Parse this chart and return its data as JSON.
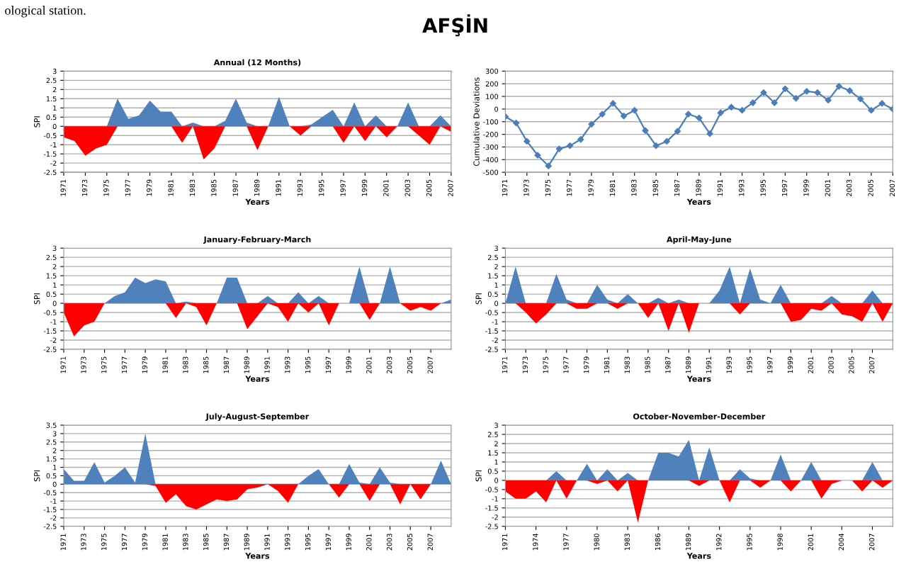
{
  "chart_data": [
    {
      "type": "area",
      "title": "Annual (12 Months)",
      "xlabel": "Years",
      "ylabel": "SPI",
      "annotations": [
        "ological station.",
        "AFŞİN"
      ],
      "x": [
        1971,
        1972,
        1973,
        1974,
        1975,
        1976,
        1977,
        1978,
        1979,
        1980,
        1981,
        1982,
        1983,
        1984,
        1985,
        1986,
        1987,
        1988,
        1989,
        1990,
        1991,
        1992,
        1993,
        1994,
        1995,
        1996,
        1997,
        1998,
        1999,
        2000,
        2001,
        2002,
        2003,
        2004,
        2005,
        2006,
        2007
      ],
      "series": [
        {
          "color": "#4f81bd",
          "values": [
            0,
            0,
            0,
            0,
            0,
            1.5,
            0.4,
            0.6,
            1.4,
            0.8,
            0.8,
            0,
            0.2,
            0,
            0,
            0.3,
            1.5,
            0.2,
            0,
            0,
            1.6,
            0,
            0,
            0.1,
            0.5,
            0.9,
            0,
            1.3,
            0,
            0.6,
            0,
            0,
            1.3,
            0,
            0,
            0.6,
            0
          ]
        },
        {
          "color": "#ff0000",
          "values": [
            -0.6,
            -0.8,
            -1.6,
            -1.2,
            -1.0,
            0,
            0,
            0,
            0,
            0,
            0,
            -0.9,
            0,
            -1.8,
            -1.2,
            0,
            0,
            0,
            -1.3,
            0,
            0,
            0,
            -0.5,
            0,
            0,
            0,
            -0.9,
            0,
            -0.8,
            0,
            -0.6,
            0,
            0,
            -0.5,
            -1.0,
            0,
            -0.3
          ]
        }
      ],
      "xlim": [
        1971,
        2007
      ],
      "xticks": [
        1971,
        1973,
        1975,
        1977,
        1979,
        1981,
        1983,
        1985,
        1987,
        1989,
        1991,
        1993,
        1995,
        1997,
        1999,
        2001,
        2003,
        2005,
        2007
      ],
      "ylim": [
        -2.5,
        3
      ],
      "yticks": [
        -2.5,
        -2,
        -1.5,
        -1,
        -0.5,
        0,
        0.5,
        1,
        1.5,
        2,
        2.5,
        3
      ],
      "grid": "y"
    },
    {
      "type": "line",
      "xlabel": "Years",
      "ylabel": "Cumulative Deviations",
      "marker": "diamond",
      "x": [
        1971,
        1972,
        1973,
        1974,
        1975,
        1976,
        1977,
        1978,
        1979,
        1980,
        1981,
        1982,
        1983,
        1984,
        1985,
        1986,
        1987,
        1988,
        1989,
        1990,
        1991,
        1992,
        1993,
        1994,
        1995,
        1996,
        1997,
        1998,
        1999,
        2000,
        2001,
        2002,
        2003,
        2004,
        2005,
        2006,
        2007
      ],
      "series": [
        {
          "color": "#4a7ebb",
          "values": [
            -60,
            -110,
            -255,
            -365,
            -450,
            -315,
            -290,
            -240,
            -120,
            -40,
            45,
            -55,
            -10,
            -170,
            -290,
            -255,
            -175,
            -40,
            -70,
            -195,
            -30,
            15,
            -10,
            50,
            130,
            50,
            160,
            85,
            140,
            130,
            70,
            180,
            145,
            80,
            -10,
            45,
            0
          ]
        }
      ],
      "xlim": [
        1971,
        2007
      ],
      "xticks": [
        1971,
        1973,
        1975,
        1977,
        1979,
        1981,
        1983,
        1985,
        1987,
        1989,
        1991,
        1993,
        1995,
        1997,
        1999,
        2001,
        2003,
        2005,
        2007
      ],
      "ylim": [
        -500,
        300
      ],
      "yticks": [
        -500,
        -400,
        -300,
        -200,
        -100,
        0,
        100,
        200,
        300
      ],
      "grid": "y"
    },
    {
      "type": "area",
      "title": "January-February-March",
      "xlabel": "Years",
      "ylabel": "SPI",
      "x": [
        1971,
        1972,
        1973,
        1974,
        1975,
        1976,
        1977,
        1978,
        1979,
        1980,
        1981,
        1982,
        1983,
        1984,
        1985,
        1986,
        1987,
        1988,
        1989,
        1990,
        1991,
        1992,
        1993,
        1994,
        1995,
        1996,
        1997,
        1998,
        1999,
        2000,
        2001,
        2002,
        2003,
        2004,
        2005,
        2006,
        2007,
        2008,
        2009
      ],
      "series": [
        {
          "color": "#4f81bd",
          "values": [
            0,
            0,
            0,
            0,
            0,
            0.4,
            0.6,
            1.4,
            1.1,
            1.3,
            1.2,
            0,
            0.1,
            0,
            0,
            0,
            1.4,
            1.4,
            0,
            0,
            0.4,
            0,
            0,
            0.6,
            0,
            0.4,
            0,
            0,
            0,
            2.0,
            0,
            0,
            2.0,
            0,
            0,
            0,
            0,
            0,
            0.2
          ]
        },
        {
          "color": "#ff0000",
          "values": [
            -0.5,
            -1.8,
            -1.2,
            -1.0,
            0,
            0,
            0,
            0,
            0,
            0,
            0,
            -0.8,
            0,
            -0.2,
            -1.2,
            0,
            0,
            0,
            -1.4,
            -0.7,
            0,
            -0.2,
            -1.0,
            0,
            -0.5,
            0,
            -1.2,
            0,
            0,
            0,
            -0.9,
            0,
            0,
            0,
            -0.4,
            -0.2,
            -0.4,
            0,
            0
          ]
        }
      ],
      "xlim": [
        1971,
        2009
      ],
      "xticks": [
        1971,
        1973,
        1975,
        1977,
        1979,
        1981,
        1983,
        1985,
        1987,
        1989,
        1991,
        1993,
        1995,
        1997,
        1999,
        2001,
        2003,
        2005,
        2007
      ],
      "ylim": [
        -2.5,
        3
      ],
      "yticks": [
        -2.5,
        -2,
        -1.5,
        -1,
        -0.5,
        0,
        0.5,
        1,
        1.5,
        2,
        2.5,
        3
      ],
      "grid": "y"
    },
    {
      "type": "area",
      "title": "April-May-June",
      "xlabel": "Years",
      "ylabel": "SPI",
      "x": [
        1971,
        1972,
        1973,
        1974,
        1975,
        1976,
        1977,
        1978,
        1979,
        1980,
        1981,
        1982,
        1983,
        1984,
        1985,
        1986,
        1987,
        1988,
        1989,
        1990,
        1991,
        1992,
        1993,
        1994,
        1995,
        1996,
        1997,
        1998,
        1999,
        2000,
        2001,
        2002,
        2003,
        2004,
        2005,
        2006,
        2007,
        2008,
        2009
      ],
      "series": [
        {
          "color": "#4f81bd",
          "values": [
            0,
            2.0,
            0,
            0,
            0,
            1.6,
            0.2,
            0,
            0,
            1.0,
            0.2,
            0,
            0.5,
            0,
            0,
            0.3,
            0,
            0.2,
            0,
            0,
            0,
            0.7,
            2.0,
            0,
            1.9,
            0.2,
            0,
            1.0,
            0,
            0,
            0,
            0,
            0.4,
            0,
            0,
            0,
            0.7,
            0,
            0
          ]
        },
        {
          "color": "#ff0000",
          "values": [
            0,
            0,
            -0.5,
            -1.1,
            -0.6,
            0,
            0,
            -0.3,
            -0.3,
            0,
            0,
            -0.3,
            0,
            0,
            -0.8,
            0,
            -1.5,
            0,
            -1.6,
            0,
            0,
            0,
            0,
            -0.6,
            0,
            0,
            0,
            0,
            -1.0,
            -0.9,
            -0.3,
            -0.4,
            0,
            -0.6,
            -0.7,
            -1.0,
            0,
            -1.0,
            0
          ]
        }
      ],
      "xlim": [
        1971,
        2009
      ],
      "xticks": [
        1971,
        1973,
        1975,
        1977,
        1979,
        1981,
        1983,
        1985,
        1987,
        1989,
        1991,
        1993,
        1995,
        1997,
        1999,
        2001,
        2003,
        2005,
        2007
      ],
      "ylim": [
        -2.5,
        3
      ],
      "yticks": [
        -2.5,
        -2,
        -1.5,
        -1,
        -0.5,
        0,
        0.5,
        1,
        1.5,
        2,
        2.5,
        3
      ],
      "grid": "y"
    },
    {
      "type": "area",
      "title": "July-August-September",
      "xlabel": "Years",
      "ylabel": "SPI",
      "x": [
        1971,
        1972,
        1973,
        1974,
        1975,
        1976,
        1977,
        1978,
        1979,
        1980,
        1981,
        1982,
        1983,
        1984,
        1985,
        1986,
        1987,
        1988,
        1989,
        1990,
        1991,
        1992,
        1993,
        1994,
        1995,
        1996,
        1997,
        1998,
        1999,
        2000,
        2001,
        2002,
        2003,
        2004,
        2005,
        2006,
        2007,
        2008,
        2009
      ],
      "series": [
        {
          "color": "#4f81bd",
          "values": [
            0.9,
            0.2,
            0.2,
            1.3,
            0.1,
            0.5,
            1.0,
            0.1,
            3.0,
            0,
            0,
            0,
            0,
            0,
            0,
            0,
            0,
            0,
            0,
            0,
            0,
            0,
            0,
            0,
            0.5,
            0.9,
            0,
            0,
            1.2,
            0.1,
            0,
            1.0,
            0.1,
            0,
            0,
            0,
            0,
            1.4,
            0
          ]
        },
        {
          "color": "#ff0000",
          "values": [
            0,
            0,
            0,
            0,
            0,
            0,
            0,
            0,
            0,
            -0.1,
            -1.1,
            -0.6,
            -1.3,
            -1.5,
            -1.2,
            -0.9,
            -1.0,
            -0.9,
            -0.3,
            -0.2,
            0,
            -0.4,
            -1.1,
            0,
            0,
            0,
            0,
            -0.8,
            0,
            0,
            -1.0,
            0,
            0,
            -1.2,
            0,
            -0.9,
            0,
            0,
            0
          ]
        }
      ],
      "xlim": [
        1971,
        2009
      ],
      "xticks": [
        1971,
        1973,
        1975,
        1977,
        1979,
        1981,
        1983,
        1985,
        1987,
        1989,
        1991,
        1993,
        1995,
        1997,
        1999,
        2001,
        2003,
        2005,
        2007
      ],
      "ylim": [
        -2.5,
        3.5
      ],
      "yticks": [
        -2.5,
        -2,
        -1.5,
        -1,
        -0.5,
        0,
        0.5,
        1,
        1.5,
        2,
        2.5,
        3,
        3.5
      ],
      "grid": "y"
    },
    {
      "type": "area",
      "title": "October-November-December",
      "xlabel": "Years",
      "ylabel": "SPI",
      "x": [
        1971,
        1972,
        1973,
        1974,
        1975,
        1976,
        1977,
        1978,
        1979,
        1980,
        1981,
        1982,
        1983,
        1984,
        1985,
        1986,
        1987,
        1988,
        1989,
        1990,
        1991,
        1992,
        1993,
        1994,
        1995,
        1996,
        1997,
        1998,
        1999,
        2000,
        2001,
        2002,
        2003,
        2004,
        2005,
        2006,
        2007,
        2008,
        2009
      ],
      "series": [
        {
          "color": "#4f81bd",
          "values": [
            0,
            0,
            0,
            0,
            0,
            0.5,
            0,
            0,
            0.9,
            0,
            0.6,
            0,
            0.4,
            0,
            0,
            1.5,
            1.5,
            1.3,
            2.2,
            0,
            1.8,
            0,
            0,
            0.6,
            0.1,
            0,
            0,
            1.4,
            0,
            0,
            1.0,
            0,
            0,
            0,
            0,
            0,
            1.0,
            0,
            0
          ]
        },
        {
          "color": "#ff0000",
          "values": [
            -0.6,
            -1.0,
            -1.0,
            -0.6,
            -1.2,
            0,
            -1.0,
            0,
            0,
            -0.2,
            0,
            -0.6,
            0,
            -2.3,
            0,
            0,
            0,
            0,
            0,
            -0.3,
            0,
            0,
            -1.2,
            0,
            0,
            -0.4,
            0,
            0,
            -0.6,
            0,
            0,
            -1.0,
            -0.2,
            0,
            0,
            -0.6,
            0,
            -0.4,
            0
          ]
        }
      ],
      "xlim": [
        1971,
        2009
      ],
      "xticks": [
        1971,
        1974,
        1977,
        1980,
        1983,
        1986,
        1989,
        1992,
        1995,
        1998,
        2001,
        2004,
        2007
      ],
      "ylim": [
        -2.5,
        3
      ],
      "yticks": [
        -2.5,
        -2,
        -1.5,
        -1,
        -0.5,
        0,
        0.5,
        1,
        1.5,
        2,
        2.5,
        3
      ],
      "grid": "y"
    }
  ]
}
